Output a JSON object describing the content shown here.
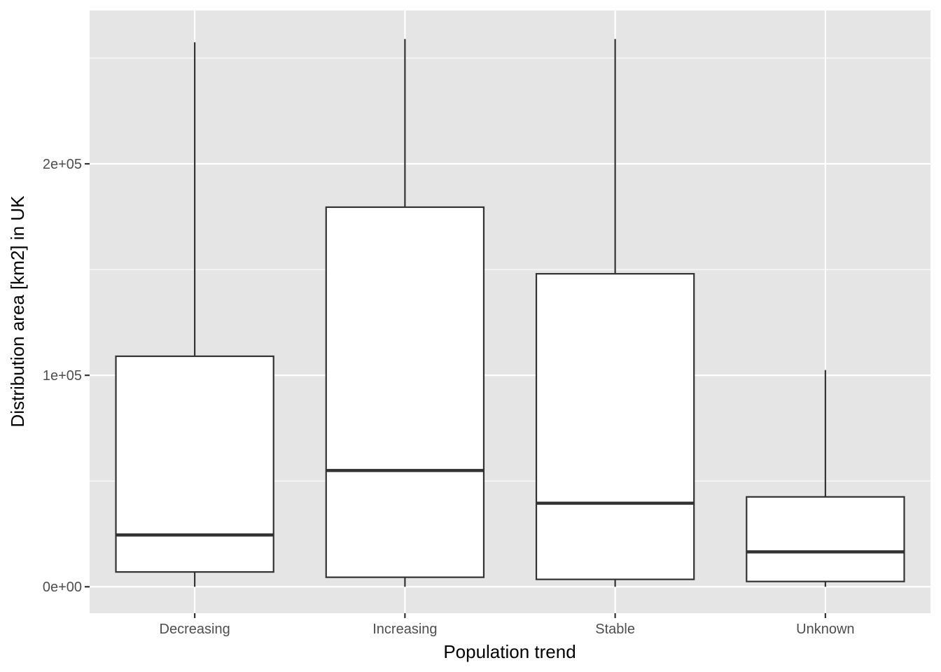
{
  "chart_data": {
    "type": "boxplot",
    "title": "",
    "xlabel": "Population trend",
    "ylabel": "Distribution area [km2] in UK",
    "ylim": [
      -12500,
      272500
    ],
    "y_ticks": [
      {
        "value": 0,
        "label": "0e+00"
      },
      {
        "value": 100000,
        "label": "1e+05"
      },
      {
        "value": 200000,
        "label": "2e+05"
      }
    ],
    "y_minor_ticks": [
      50000,
      150000,
      250000
    ],
    "grid": true,
    "legend": "none",
    "categories": [
      "Decreasing",
      "Increasing",
      "Stable",
      "Unknown"
    ],
    "boxes": [
      {
        "category": "Decreasing",
        "min": 0,
        "q1": 7000,
        "median": 24500,
        "q3": 109000,
        "max": 257500
      },
      {
        "category": "Increasing",
        "min": 0,
        "q1": 4500,
        "median": 55000,
        "q3": 179500,
        "max": 259000
      },
      {
        "category": "Stable",
        "min": 0,
        "q1": 3500,
        "median": 39500,
        "q3": 148000,
        "max": 259000
      },
      {
        "category": "Unknown",
        "min": 0,
        "q1": 2500,
        "median": 16500,
        "q3": 42500,
        "max": 102500
      }
    ],
    "colors": {
      "panel_background": "#e5e5e5",
      "grid": "#ffffff",
      "box_fill": "#ffffff",
      "box_stroke": "#333333",
      "tick_text": "#4d4d4d",
      "title_text": "#000000"
    }
  }
}
